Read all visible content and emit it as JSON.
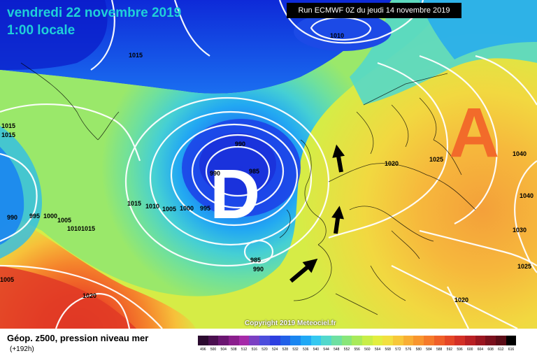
{
  "header": {
    "date": "vendredi 22 novembre 2019",
    "time": "1:00 locale",
    "run": "Run ECMWF 0Z du jeudi 14 novembre 2019"
  },
  "map": {
    "low_symbol": "D",
    "high_symbol": "A",
    "copyright": "Copyright 2019 Meteociel.fr",
    "isobar_labels": [
      "1010",
      "1015",
      "1015",
      "1015",
      "990",
      "995",
      "1000",
      "990",
      "985",
      "1005",
      "1015",
      "1010",
      "1005",
      "1000",
      "995",
      "990",
      "985",
      "990",
      "1020",
      "1025",
      "1040",
      "1040",
      "1030",
      "1025",
      "1020",
      "1010",
      "1015",
      "1020",
      "1005"
    ],
    "arrows": [
      "arrow-up",
      "arrow-up",
      "arrow-up-right"
    ]
  },
  "footer": {
    "title": "Géop. z500, pression niveau mer",
    "lead": "(+192h)"
  },
  "scale": {
    "labels": [
      "496",
      "500",
      "504",
      "508",
      "512",
      "516",
      "520",
      "524",
      "528",
      "532",
      "536",
      "540",
      "544",
      "548",
      "552",
      "556",
      "560",
      "564",
      "568",
      "572",
      "576",
      "580",
      "584",
      "588",
      "592",
      "596",
      "600",
      "604",
      "608",
      "612",
      "616"
    ],
    "colors": [
      "#2b0a2f",
      "#4a0f4f",
      "#6a1570",
      "#8a1e8c",
      "#a52aa8",
      "#7b3fc2",
      "#4c4ddc",
      "#2d3fe0",
      "#2260e8",
      "#1a85f0",
      "#20a8f5",
      "#35c8f0",
      "#52d8cc",
      "#6ee0a2",
      "#88e67a",
      "#a8ea5a",
      "#c8ee48",
      "#e2ee40",
      "#f2e040",
      "#f7c83a",
      "#f8ae34",
      "#f8952e",
      "#f57a2a",
      "#ef5f28",
      "#e44626",
      "#d33026",
      "#b92024",
      "#9a1620",
      "#7a101c",
      "#5a0c16",
      "#000000"
    ]
  }
}
